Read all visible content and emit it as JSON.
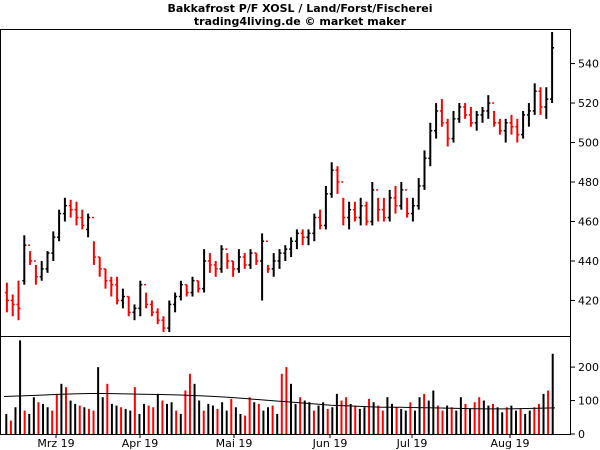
{
  "chart_data": [
    {
      "type": "ohlc",
      "title": "Bakkafrost P/F XOSL / Land/Forst/Fischerei",
      "subtitle": "trading4living.de © market maker",
      "xlabel": "",
      "ylabel": "",
      "x_tick_labels": [
        "Mrz 19",
        "Apr 19",
        "Mai 19",
        "Jun 19",
        "Jul 19",
        "Aug 19"
      ],
      "y_ticks": [
        420,
        440,
        460,
        480,
        500,
        520,
        540
      ],
      "ylim": [
        402,
        557
      ],
      "grid": false,
      "up_color": "#000000",
      "down_color": "#ff0000",
      "bars_approx": [
        [
          424,
          429,
          414,
          420
        ],
        [
          420,
          423,
          412,
          418
        ],
        [
          418,
          430,
          410,
          416
        ],
        [
          430,
          453,
          428,
          448
        ],
        [
          448,
          445,
          438,
          440
        ],
        [
          440,
          438,
          428,
          432
        ],
        [
          432,
          440,
          430,
          436
        ],
        [
          436,
          445,
          434,
          444
        ],
        [
          444,
          455,
          440,
          452
        ],
        [
          452,
          466,
          450,
          464
        ],
        [
          464,
          472,
          460,
          468
        ],
        [
          468,
          471,
          462,
          466
        ],
        [
          466,
          470,
          458,
          462
        ],
        [
          462,
          466,
          456,
          458
        ],
        [
          456,
          464,
          452,
          462
        ],
        [
          462,
          450,
          438,
          442
        ],
        [
          442,
          442,
          432,
          436
        ],
        [
          436,
          436,
          426,
          430
        ],
        [
          430,
          432,
          422,
          428
        ],
        [
          428,
          432,
          418,
          420
        ],
        [
          420,
          426,
          416,
          422
        ],
        [
          422,
          422,
          412,
          414
        ],
        [
          414,
          418,
          410,
          416
        ],
        [
          416,
          430,
          412,
          428
        ],
        [
          428,
          424,
          416,
          418
        ],
        [
          418,
          420,
          412,
          414
        ],
        [
          414,
          416,
          408,
          410
        ],
        [
          410,
          412,
          404,
          406
        ],
        [
          406,
          420,
          404,
          418
        ],
        [
          418,
          424,
          414,
          422
        ],
        [
          422,
          430,
          420,
          428
        ],
        [
          428,
          428,
          422,
          424
        ],
        [
          424,
          432,
          422,
          430
        ],
        [
          430,
          430,
          424,
          426
        ],
        [
          426,
          446,
          424,
          440
        ],
        [
          440,
          444,
          434,
          438
        ],
        [
          438,
          440,
          432,
          436
        ],
        [
          436,
          448,
          434,
          446
        ],
        [
          446,
          444,
          436,
          440
        ],
        [
          440,
          440,
          432,
          436
        ],
        [
          436,
          446,
          434,
          442
        ],
        [
          442,
          444,
          436,
          438
        ],
        [
          438,
          446,
          436,
          444
        ],
        [
          444,
          444,
          438,
          440
        ],
        [
          440,
          454,
          420,
          450
        ],
        [
          450,
          438,
          434,
          436
        ],
        [
          436,
          444,
          432,
          440
        ],
        [
          440,
          446,
          436,
          444
        ],
        [
          444,
          448,
          440,
          446
        ],
        [
          446,
          452,
          442,
          450
        ],
        [
          450,
          456,
          446,
          454
        ],
        [
          454,
          456,
          448,
          452
        ],
        [
          452,
          456,
          448,
          454
        ],
        [
          454,
          464,
          450,
          462
        ],
        [
          462,
          466,
          456,
          458
        ],
        [
          458,
          478,
          456,
          474
        ],
        [
          474,
          490,
          472,
          486
        ],
        [
          486,
          488,
          474,
          480
        ],
        [
          480,
          472,
          458,
          462
        ],
        [
          462,
          470,
          456,
          466
        ],
        [
          466,
          470,
          460,
          462
        ],
        [
          462,
          472,
          458,
          468
        ],
        [
          468,
          470,
          458,
          460
        ],
        [
          460,
          480,
          458,
          476
        ],
        [
          476,
          472,
          460,
          466
        ],
        [
          466,
          472,
          460,
          462
        ],
        [
          462,
          476,
          460,
          472
        ],
        [
          472,
          478,
          464,
          468
        ],
        [
          468,
          480,
          466,
          476
        ],
        [
          476,
          472,
          462,
          464
        ],
        [
          464,
          472,
          460,
          468
        ],
        [
          468,
          482,
          466,
          478
        ],
        [
          478,
          496,
          476,
          492
        ],
        [
          492,
          510,
          488,
          506
        ],
        [
          506,
          520,
          502,
          516
        ],
        [
          516,
          522,
          508,
          510
        ],
        [
          510,
          512,
          498,
          502
        ],
        [
          502,
          516,
          500,
          512
        ],
        [
          512,
          520,
          510,
          518
        ],
        [
          518,
          520,
          512,
          514
        ],
        [
          514,
          518,
          508,
          510
        ],
        [
          510,
          516,
          506,
          514
        ],
        [
          514,
          518,
          510,
          516
        ],
        [
          516,
          524,
          512,
          520
        ],
        [
          520,
          516,
          508,
          510
        ],
        [
          510,
          512,
          504,
          506
        ],
        [
          506,
          512,
          500,
          510
        ],
        [
          510,
          514,
          504,
          508
        ],
        [
          508,
          512,
          500,
          504
        ],
        [
          504,
          516,
          502,
          514
        ],
        [
          514,
          520,
          508,
          516
        ],
        [
          516,
          530,
          514,
          526
        ],
        [
          526,
          528,
          514,
          518
        ],
        [
          518,
          528,
          512,
          522
        ],
        [
          522,
          556,
          520,
          548
        ]
      ]
    },
    {
      "type": "bar",
      "title": "",
      "xlabel": "",
      "ylabel": "",
      "y_ticks": [
        0,
        100,
        200
      ],
      "ylim": [
        0,
        290
      ],
      "grid": false,
      "moving_average": [
        112,
        114,
        116,
        118,
        120,
        121,
        121,
        120,
        119,
        118,
        117,
        115,
        113,
        110,
        106,
        102,
        98,
        94,
        90,
        86,
        84,
        82,
        80,
        80,
        79,
        78,
        77,
        76,
        75,
        75,
        76,
        77,
        78
      ],
      "values": [
        60,
        40,
        80,
        280,
        70,
        60,
        110,
        95,
        90,
        80,
        70,
        120,
        150,
        140,
        100,
        90,
        85,
        80,
        75,
        70,
        200,
        110,
        150,
        90,
        85,
        80,
        75,
        70,
        140,
        60,
        90,
        85,
        80,
        120,
        100,
        90,
        95,
        70,
        60,
        130,
        180,
        150,
        100,
        70,
        90,
        85,
        75,
        95,
        70,
        105,
        80,
        60,
        55,
        110,
        95,
        90,
        70,
        80,
        85,
        60,
        180,
        200,
        150,
        90,
        110,
        100,
        95,
        70,
        85,
        95,
        75,
        80,
        120,
        100,
        110,
        90,
        85,
        75,
        80,
        105,
        95,
        85,
        70,
        110,
        90,
        80,
        75,
        70,
        95,
        70,
        110,
        120,
        100,
        130,
        85,
        70,
        85,
        80,
        70,
        110,
        90,
        75,
        95,
        110,
        100,
        85,
        90,
        80,
        65,
        80,
        85,
        70,
        75,
        60,
        70,
        80,
        90,
        120,
        130,
        240
      ]
    }
  ]
}
